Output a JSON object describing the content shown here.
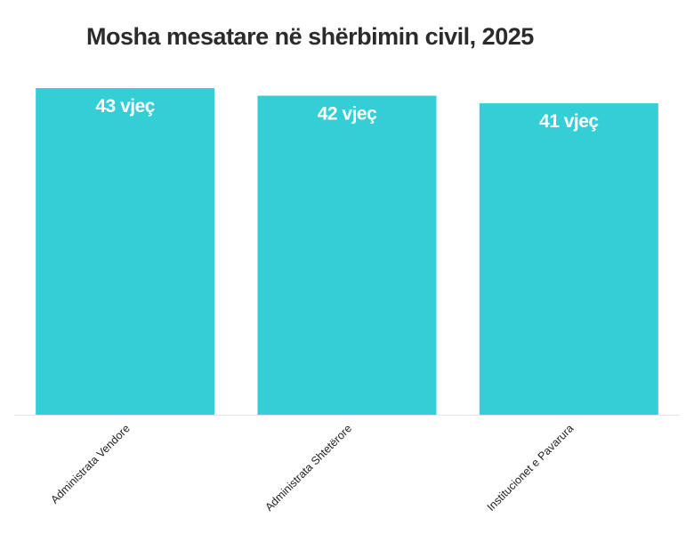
{
  "chart_data": {
    "type": "bar",
    "title": "Mosha mesatare në shërbimin civil, 2025",
    "xlabel": "",
    "ylabel": "",
    "categories": [
      "Administrata Vendore",
      "Administrata Shtetërore",
      "Institucionet e Pavarura"
    ],
    "values": [
      43,
      42,
      41
    ],
    "value_labels": [
      "43 vjeç",
      "42 vjeç",
      "41 vjeç"
    ],
    "unit": "vjeç",
    "ylim": [
      0,
      43
    ],
    "grid": false,
    "legend": "none",
    "bar_color": "#33CED6",
    "label_color": "#FFFFFF",
    "baseline_color": "#E4E4E4"
  }
}
